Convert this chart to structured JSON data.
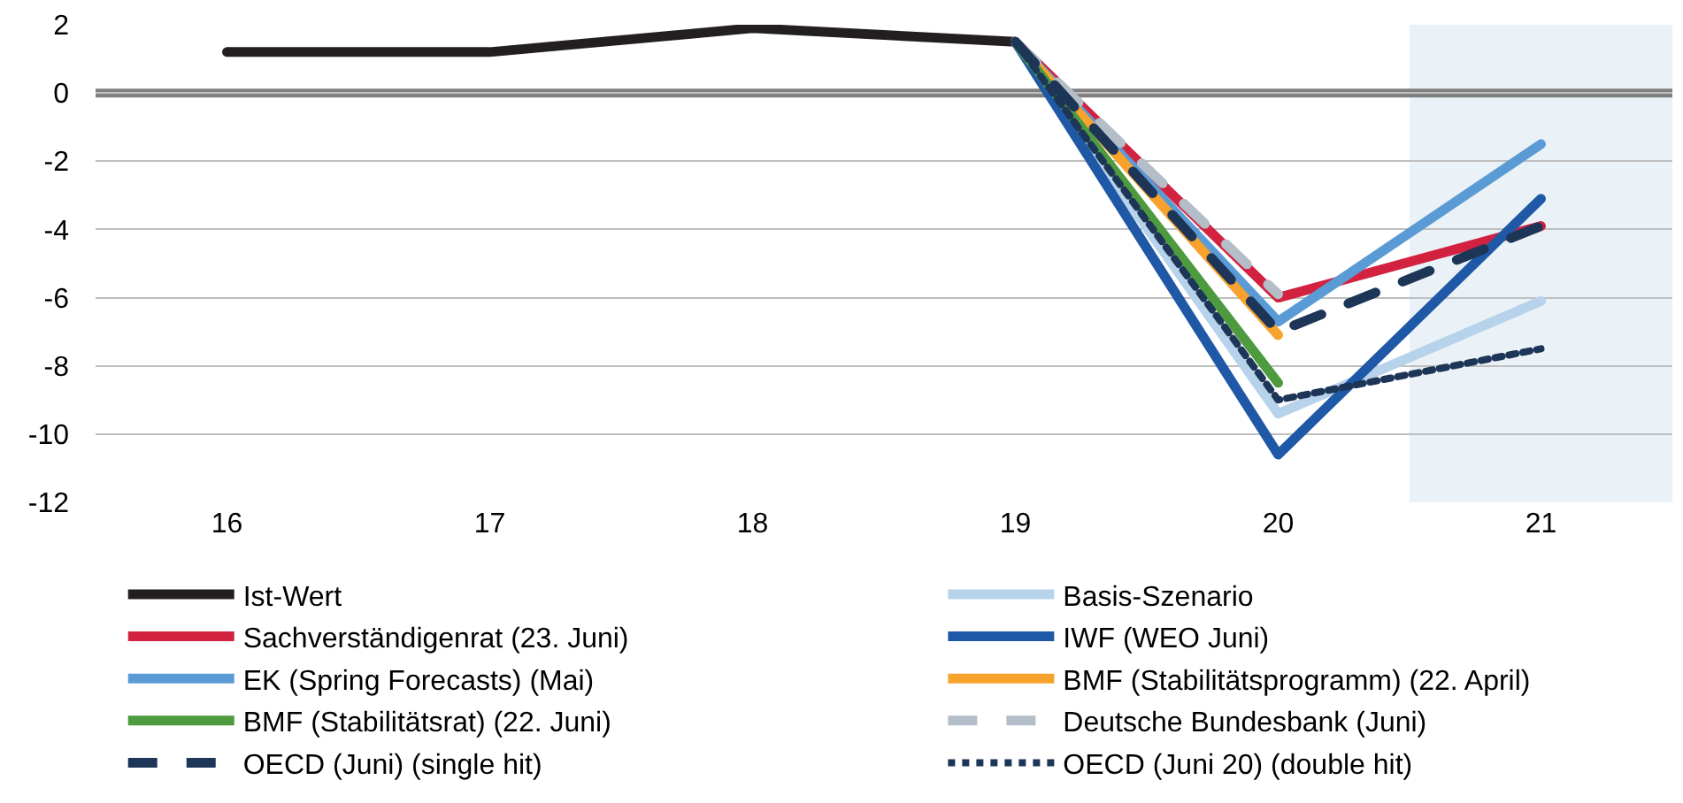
{
  "chart_data": {
    "type": "line",
    "xlim": [
      15.5,
      21.5
    ],
    "xticks": [
      16,
      17,
      18,
      19,
      20,
      21
    ],
    "ylim": [
      -12,
      2
    ],
    "yticks": [
      -12,
      -10,
      -8,
      -6,
      -4,
      -2,
      0,
      2
    ],
    "grid": "y",
    "legend": "bottom",
    "line_style": "solid",
    "marker": "none",
    "bands": [
      {
        "axis": "x",
        "from": 20.5,
        "to": 21.5,
        "color": "#eaf2f7"
      }
    ],
    "ref_lines": [
      {
        "axis": "y",
        "value": 0,
        "color": "#7f7f7f"
      }
    ],
    "series": [
      {
        "name": "Ist-Wert",
        "color": "#231f20",
        "x": [
          16,
          17,
          18,
          19
        ],
        "values": [
          1.2,
          1.2,
          1.9,
          1.5
        ]
      },
      {
        "name": "Basis-Szenario",
        "color": "#b7d3ec",
        "x": [
          19,
          20,
          21
        ],
        "values": [
          1.5,
          -9.4,
          -6.1
        ]
      },
      {
        "name": "Sachverständigenrat (23. Juni)",
        "color": "#d22240",
        "x": [
          19,
          20,
          21
        ],
        "values": [
          1.5,
          -6.0,
          -3.9
        ]
      },
      {
        "name": "IWF (WEO Juni)",
        "color": "#1f58a6",
        "x": [
          19,
          20,
          21
        ],
        "values": [
          1.5,
          -10.6,
          -3.1
        ]
      },
      {
        "name": "EK (Spring Forecasts) (Mai)",
        "color": "#5b9bd5",
        "x": [
          19,
          20,
          21
        ],
        "values": [
          1.5,
          -6.7,
          -1.5
        ]
      },
      {
        "name": "BMF (Stabilitätsprogramm) (22. April)",
        "color": "#f6a22d",
        "x": [
          19,
          20
        ],
        "values": [
          1.5,
          -7.1
        ]
      },
      {
        "name": "BMF (Stabilitätsrat) (22. Juni)",
        "color": "#4e9a3f",
        "x": [
          19,
          20
        ],
        "values": [
          1.5,
          -8.5
        ]
      },
      {
        "name": "Deutsche Bundesbank (Juni)",
        "color": "#b4bec8",
        "line_style": "dashed",
        "x": [
          19,
          20
        ],
        "values": [
          1.5,
          -5.9
        ]
      },
      {
        "name": "OECD (Juni) (single hit)",
        "color": "#1d3557",
        "line_style": "dashed",
        "x": [
          19,
          20,
          21
        ],
        "values": [
          1.5,
          -7.0,
          -3.9
        ]
      },
      {
        "name": "OECD (Juni 20) (double hit)",
        "color": "#1d3557",
        "line_style": "dotted",
        "x": [
          19,
          20,
          21
        ],
        "values": [
          1.5,
          -9.0,
          -7.5
        ]
      }
    ]
  }
}
